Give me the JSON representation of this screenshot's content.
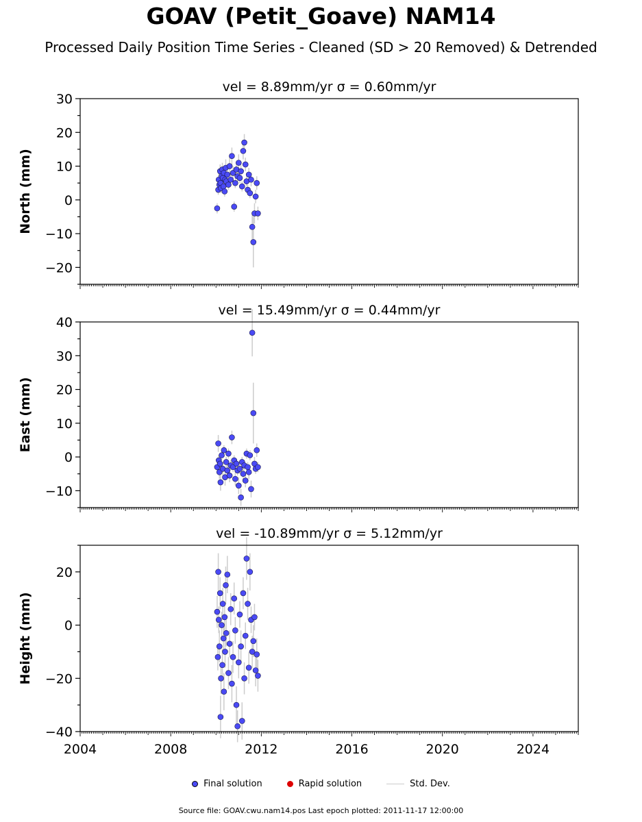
{
  "header": {
    "title": "GOAV (Petit_Goave) NAM14",
    "subtitle": "Processed Daily Position Time Series - Cleaned (SD > 20 Removed) & Detrended"
  },
  "colors": {
    "final": "#4a4af5",
    "rapid": "#dd0000",
    "stddev": "#cccccc"
  },
  "legend": {
    "final": "Final solution",
    "rapid": "Rapid solution",
    "stddev": "Std. Dev."
  },
  "footer": {
    "text": "Source file: GOAV.cwu.nam14.pos  Last epoch plotted: 2011-11-17 12:00:00"
  },
  "chart_data": [
    {
      "type": "scatter",
      "title": "vel = 8.89mm/yr   σ = 0.60mm/yr",
      "ylabel": "North (mm)",
      "xlim": [
        2004,
        2026
      ],
      "ylim": [
        -25,
        30
      ],
      "yticks": [
        -20,
        -10,
        0,
        10,
        20,
        30
      ],
      "xticks": [
        2004,
        2008,
        2012,
        2016,
        2020,
        2024
      ],
      "x": [
        2010.05,
        2010.1,
        2010.12,
        2010.15,
        2010.18,
        2010.2,
        2010.22,
        2010.25,
        2010.28,
        2010.3,
        2010.33,
        2010.35,
        2010.38,
        2010.4,
        2010.43,
        2010.45,
        2010.5,
        2010.55,
        2010.6,
        2010.65,
        2010.7,
        2010.75,
        2010.8,
        2010.85,
        2010.9,
        2010.95,
        2011.0,
        2011.05,
        2011.1,
        2011.15,
        2011.2,
        2011.25,
        2011.3,
        2011.35,
        2011.4,
        2011.45,
        2011.5,
        2011.55,
        2011.6,
        2011.65,
        2011.7,
        2011.75,
        2011.8,
        2011.85
      ],
      "y": [
        -2.5,
        3.0,
        6.0,
        4.5,
        8.5,
        5.0,
        3.5,
        7.0,
        9.0,
        6.5,
        4.0,
        8.0,
        2.5,
        6.0,
        9.5,
        5.5,
        7.5,
        4.5,
        10.0,
        6.0,
        13.0,
        8.0,
        -2.0,
        5.0,
        9.0,
        7.0,
        11.0,
        6.5,
        8.5,
        4.0,
        14.5,
        17.0,
        10.5,
        5.5,
        3.0,
        7.5,
        2.0,
        6.0,
        -8.0,
        -12.5,
        -4.0,
        1.0,
        5.0,
        -4.0
      ],
      "err": [
        1.5,
        1.5,
        2.0,
        1.5,
        2.0,
        1.5,
        1.5,
        2.0,
        2.0,
        1.5,
        1.5,
        2.0,
        1.5,
        1.5,
        2.5,
        1.5,
        2.0,
        1.5,
        2.5,
        1.5,
        2.5,
        2.0,
        1.5,
        1.5,
        2.0,
        2.0,
        2.5,
        1.5,
        2.0,
        1.5,
        2.5,
        2.5,
        2.0,
        1.5,
        1.5,
        2.0,
        1.5,
        2.0,
        4.0,
        7.5,
        3.0,
        2.0,
        2.0,
        2.0
      ]
    },
    {
      "type": "scatter",
      "title": "vel = 15.49mm/yr   σ = 0.44mm/yr",
      "ylabel": "East (mm)",
      "xlim": [
        2004,
        2026
      ],
      "ylim": [
        -15,
        40
      ],
      "yticks": [
        -10,
        0,
        10,
        20,
        30,
        40
      ],
      "xticks": [
        2004,
        2008,
        2012,
        2016,
        2020,
        2024
      ],
      "x": [
        2010.05,
        2010.1,
        2010.12,
        2010.15,
        2010.18,
        2010.2,
        2010.25,
        2010.3,
        2010.35,
        2010.4,
        2010.45,
        2010.5,
        2010.55,
        2010.6,
        2010.65,
        2010.7,
        2010.75,
        2010.8,
        2010.85,
        2010.9,
        2010.95,
        2011.0,
        2011.05,
        2011.1,
        2011.15,
        2011.2,
        2011.25,
        2011.3,
        2011.35,
        2011.4,
        2011.45,
        2011.5,
        2011.55,
        2011.6,
        2011.65,
        2011.7,
        2011.75,
        2011.8,
        2011.85
      ],
      "y": [
        -3.0,
        4.0,
        -1.0,
        -4.5,
        -2.0,
        -7.5,
        0.5,
        -3.5,
        2.0,
        -6.0,
        -1.5,
        -4.0,
        1.0,
        -5.5,
        -2.5,
        5.8,
        -3.0,
        -1.0,
        -6.5,
        -2.0,
        -4.0,
        -8.5,
        -3.5,
        -12.0,
        -1.5,
        -5.0,
        -2.5,
        -7.0,
        1.0,
        -3.0,
        -4.5,
        0.5,
        -9.5,
        36.8,
        13.0,
        -2.0,
        -3.5,
        2.0,
        -3.0
      ],
      "err": [
        1.5,
        2.5,
        1.5,
        2.0,
        1.5,
        2.5,
        1.5,
        2.0,
        1.5,
        2.5,
        1.5,
        2.0,
        1.5,
        2.0,
        1.5,
        2.0,
        1.5,
        1.5,
        2.0,
        1.5,
        1.5,
        2.5,
        1.5,
        2.5,
        1.5,
        2.0,
        1.5,
        2.0,
        1.5,
        1.5,
        2.0,
        1.5,
        2.5,
        7.0,
        9.0,
        2.0,
        1.5,
        2.0,
        1.5
      ]
    },
    {
      "type": "scatter",
      "title": "vel = -10.89mm/yr   σ = 5.12mm/yr",
      "ylabel": "Height (mm)",
      "xlim": [
        2004,
        2026
      ],
      "ylim": [
        -40,
        30
      ],
      "yticks": [
        -40,
        -20,
        0,
        20
      ],
      "xticks": [
        2004,
        2008,
        2012,
        2016,
        2020,
        2024
      ],
      "xtick_labels": [
        "2004",
        "2008",
        "2012",
        "2016",
        "2020",
        "2024"
      ],
      "x": [
        2010.05,
        2010.08,
        2010.1,
        2010.12,
        2010.15,
        2010.18,
        2010.2,
        2010.22,
        2010.25,
        2010.28,
        2010.3,
        2010.33,
        2010.35,
        2010.38,
        2010.4,
        2010.43,
        2010.45,
        2010.5,
        2010.55,
        2010.6,
        2010.65,
        2010.7,
        2010.75,
        2010.8,
        2010.85,
        2010.9,
        2010.95,
        2011.0,
        2011.05,
        2011.1,
        2011.15,
        2011.2,
        2011.25,
        2011.3,
        2011.35,
        2011.4,
        2011.45,
        2011.5,
        2011.55,
        2011.6,
        2011.65,
        2011.7,
        2011.75,
        2011.8,
        2011.85
      ],
      "y": [
        5.0,
        -12.0,
        20.0,
        2.0,
        -8.0,
        12.0,
        -34.5,
        -20.0,
        0.0,
        -15.0,
        8.0,
        -5.0,
        -25.0,
        3.0,
        -10.0,
        15.0,
        -3.0,
        19.0,
        -18.0,
        -7.0,
        6.0,
        -22.0,
        -12.0,
        10.0,
        -2.0,
        -30.0,
        -38.0,
        -14.0,
        4.0,
        -8.0,
        -36.0,
        12.0,
        -20.0,
        -4.0,
        25.0,
        8.0,
        -16.0,
        20.0,
        2.0,
        -10.0,
        -6.0,
        3.0,
        -17.0,
        -11.0,
        -19.0
      ],
      "err": [
        6,
        5,
        7,
        5,
        6,
        6,
        8,
        6,
        5,
        6,
        6,
        5,
        7,
        5,
        6,
        7,
        5,
        7,
        6,
        5,
        6,
        7,
        6,
        6,
        5,
        7,
        6,
        6,
        5,
        6,
        7,
        6,
        6,
        5,
        8,
        6,
        6,
        7,
        5,
        6,
        6,
        5,
        6,
        6,
        6
      ]
    }
  ]
}
